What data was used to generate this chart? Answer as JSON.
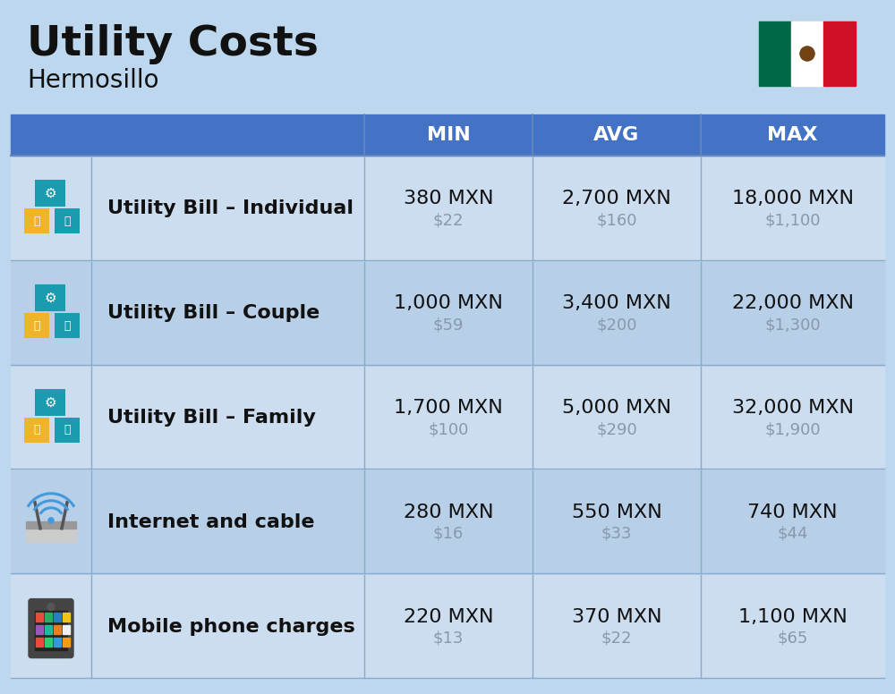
{
  "title": "Utility Costs",
  "subtitle": "Hermosillo",
  "background_color": "#bdd7ee",
  "header_bg_color": "#4472c4",
  "header_text_color": "#ffffff",
  "row_colors": [
    "#ccddf0",
    "#b8cfe8"
  ],
  "sep_color": "#8aaacc",
  "col_header_labels": [
    "MIN",
    "AVG",
    "MAX"
  ],
  "rows": [
    {
      "label": "Utility Bill – Individual",
      "min_mxn": "380 MXN",
      "min_usd": "$22",
      "avg_mxn": "2,700 MXN",
      "avg_usd": "$160",
      "max_mxn": "18,000 MXN",
      "max_usd": "$1,100"
    },
    {
      "label": "Utility Bill – Couple",
      "min_mxn": "1,000 MXN",
      "min_usd": "$59",
      "avg_mxn": "3,400 MXN",
      "avg_usd": "$200",
      "max_mxn": "22,000 MXN",
      "max_usd": "$1,300"
    },
    {
      "label": "Utility Bill – Family",
      "min_mxn": "1,700 MXN",
      "min_usd": "$100",
      "avg_mxn": "5,000 MXN",
      "avg_usd": "$290",
      "max_mxn": "32,000 MXN",
      "max_usd": "$1,900"
    },
    {
      "label": "Internet and cable",
      "min_mxn": "280 MXN",
      "min_usd": "$16",
      "avg_mxn": "550 MXN",
      "avg_usd": "$33",
      "max_mxn": "740 MXN",
      "max_usd": "$44"
    },
    {
      "label": "Mobile phone charges",
      "min_mxn": "220 MXN",
      "min_usd": "$13",
      "avg_mxn": "370 MXN",
      "avg_usd": "$22",
      "max_mxn": "1,100 MXN",
      "max_usd": "$65"
    }
  ],
  "title_fontsize": 34,
  "subtitle_fontsize": 20,
  "header_fontsize": 16,
  "label_fontsize": 16,
  "value_fontsize": 16,
  "usd_fontsize": 13,
  "usd_color": "#8899aa",
  "label_color": "#111111",
  "value_color": "#111111"
}
